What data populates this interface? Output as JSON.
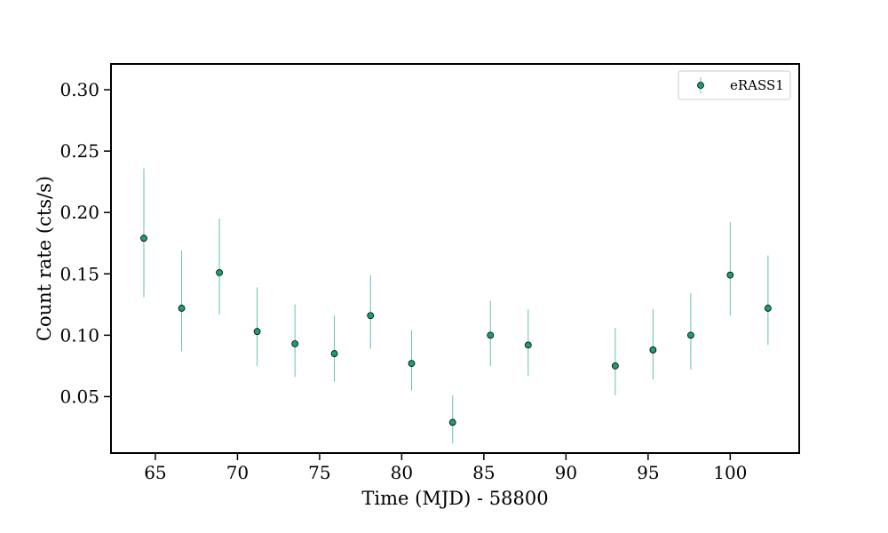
{
  "chart_data": {
    "type": "scatter",
    "title": "",
    "xlabel": "Time (MJD) - 58800",
    "ylabel": "Count rate (cts/s)",
    "xlim": [
      62.3,
      104.2
    ],
    "ylim": [
      0.004,
      0.321
    ],
    "xticks": [
      65,
      70,
      75,
      80,
      85,
      90,
      95,
      100
    ],
    "yticks": [
      0.05,
      0.1,
      0.15,
      0.2,
      0.25,
      0.3
    ],
    "ytick_labels": [
      "0.05",
      "0.10",
      "0.15",
      "0.20",
      "0.25",
      "0.30"
    ],
    "grid": false,
    "legend_position": "top-right",
    "marker_color": "#1b9e77",
    "errorbar_color": "#66c2a5",
    "series": [
      {
        "name": "eRASS1",
        "x": [
          64.3,
          66.6,
          68.9,
          71.2,
          73.5,
          75.9,
          78.1,
          80.6,
          83.1,
          85.4,
          87.7,
          93.0,
          95.3,
          97.6,
          100.0,
          102.3
        ],
        "y": [
          0.179,
          0.122,
          0.151,
          0.103,
          0.093,
          0.085,
          0.116,
          0.077,
          0.029,
          0.1,
          0.092,
          0.075,
          0.088,
          0.1,
          0.149,
          0.122
        ],
        "y_lower": [
          0.131,
          0.087,
          0.117,
          0.075,
          0.066,
          0.062,
          0.089,
          0.055,
          0.012,
          0.075,
          0.067,
          0.051,
          0.064,
          0.072,
          0.116,
          0.092
        ],
        "y_upper": [
          0.236,
          0.169,
          0.195,
          0.139,
          0.125,
          0.116,
          0.149,
          0.104,
          0.051,
          0.128,
          0.121,
          0.106,
          0.121,
          0.134,
          0.192,
          0.165
        ]
      }
    ]
  }
}
